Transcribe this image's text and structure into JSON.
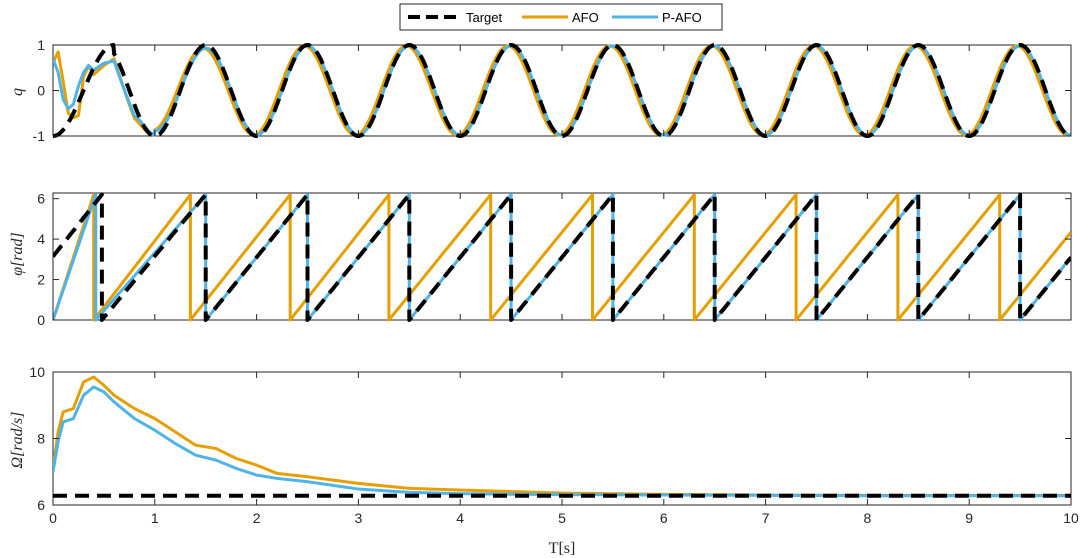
{
  "legend": {
    "entries": [
      {
        "label": "Target",
        "color": "#000000",
        "dash": true
      },
      {
        "label": "AFO",
        "color": "#E69F00",
        "dash": false
      },
      {
        "label": "P-AFO",
        "color": "#4FB3E8",
        "dash": false
      }
    ],
    "position": "top-center"
  },
  "chart_data": [
    {
      "type": "line",
      "ylabel": "q",
      "xlim": [
        0,
        10
      ],
      "ylim": [
        -1,
        1
      ],
      "yticks": [
        "-1",
        "0",
        "1"
      ],
      "xticks": [],
      "series": [
        {
          "name": "Target",
          "color": "#000000",
          "x": [
            0,
            0.1,
            0.2,
            0.3,
            0.4,
            0.5,
            0.6,
            0.7,
            0.8,
            0.9,
            1.0
          ],
          "y": [
            -1.0,
            -0.81,
            -0.31,
            0.31,
            0.81,
            1.0,
            0.81,
            0.31,
            -0.31,
            -0.81,
            -1.0
          ],
          "note_period_s": 1.0,
          "steady": "-cos(2*pi*t)"
        },
        {
          "name": "AFO",
          "color": "#E69F00",
          "x": [
            0,
            0.05,
            0.1,
            0.15,
            0.2,
            0.25,
            0.3,
            0.35,
            0.4,
            0.5,
            0.6,
            0.8,
            1.0
          ],
          "y": [
            0.6,
            0.85,
            0.2,
            -0.5,
            -0.6,
            -0.55,
            0.3,
            0.55,
            0.35,
            0.55,
            0.7,
            -0.75,
            -0.8
          ],
          "steady_phase_lead_s": 0.03
        },
        {
          "name": "P-AFO",
          "color": "#4FB3E8",
          "x": [
            0,
            0.05,
            0.1,
            0.15,
            0.2,
            0.25,
            0.3,
            0.35,
            0.4,
            0.5,
            0.6,
            0.8,
            1.0
          ],
          "y": [
            0.7,
            0.4,
            -0.2,
            -0.4,
            -0.3,
            0.1,
            0.4,
            0.55,
            0.45,
            0.6,
            0.65,
            -0.8,
            -0.75
          ],
          "steady_phase_lead_s": 0.0
        }
      ]
    },
    {
      "type": "line",
      "ylabel": "φ[rad]",
      "xlim": [
        0,
        10
      ],
      "ylim": [
        0,
        6.28
      ],
      "yticks": [
        "0",
        "2",
        "4",
        "6"
      ],
      "xticks": [],
      "series": [
        {
          "name": "Target",
          "color": "#000000",
          "wraps_at_s": [
            0.48,
            1.5,
            2.5,
            3.5,
            4.5,
            5.5,
            6.5,
            7.5,
            8.5,
            9.5
          ],
          "start_value": 3.14
        },
        {
          "name": "AFO",
          "color": "#E69F00",
          "wraps_at_s": [
            0.4,
            1.35,
            2.33,
            3.3,
            4.3,
            5.3,
            6.3,
            7.3,
            8.3,
            9.3
          ],
          "start_value": 0
        },
        {
          "name": "P-AFO",
          "color": "#4FB3E8",
          "wraps_at_s": [
            0.42,
            1.5,
            2.5,
            3.5,
            4.5,
            5.5,
            6.5,
            7.5,
            8.5,
            9.5
          ],
          "start_value": 0
        }
      ]
    },
    {
      "type": "line",
      "ylabel": "Ω[rad/s]",
      "xlabel": "T[s]",
      "xlim": [
        0,
        10
      ],
      "ylim": [
        6,
        10
      ],
      "yticks": [
        "6",
        "8",
        "10"
      ],
      "xticks": [
        "0",
        "1",
        "2",
        "3",
        "4",
        "5",
        "6",
        "7",
        "8",
        "9",
        "10"
      ],
      "series": [
        {
          "name": "Target",
          "color": "#000000",
          "x": [
            0,
            10
          ],
          "y": [
            6.28,
            6.28
          ]
        },
        {
          "name": "AFO",
          "color": "#E69F00",
          "x": [
            0,
            0.05,
            0.1,
            0.2,
            0.3,
            0.4,
            0.5,
            0.6,
            0.8,
            1.0,
            1.2,
            1.4,
            1.6,
            1.8,
            2.0,
            2.2,
            2.5,
            3.0,
            3.5,
            4.0,
            5.0,
            6.0,
            7.0,
            8.0,
            9.0,
            10.0
          ],
          "y": [
            7.1,
            8.2,
            8.8,
            8.9,
            9.7,
            9.85,
            9.6,
            9.3,
            8.9,
            8.6,
            8.2,
            7.8,
            7.7,
            7.4,
            7.2,
            6.95,
            6.85,
            6.65,
            6.5,
            6.45,
            6.36,
            6.32,
            6.3,
            6.29,
            6.29,
            6.29
          ]
        },
        {
          "name": "P-AFO",
          "color": "#4FB3E8",
          "x": [
            0,
            0.05,
            0.1,
            0.2,
            0.3,
            0.4,
            0.5,
            0.6,
            0.8,
            1.0,
            1.2,
            1.4,
            1.6,
            1.8,
            2.0,
            2.2,
            2.5,
            3.0,
            3.5,
            4.0,
            5.0,
            6.0,
            7.0,
            8.0,
            9.0,
            10.0
          ],
          "y": [
            7.0,
            7.9,
            8.5,
            8.6,
            9.3,
            9.55,
            9.4,
            9.1,
            8.6,
            8.25,
            7.85,
            7.5,
            7.35,
            7.1,
            6.9,
            6.8,
            6.7,
            6.48,
            6.38,
            6.34,
            6.31,
            6.3,
            6.29,
            6.28,
            6.28,
            6.28
          ]
        }
      ]
    }
  ]
}
